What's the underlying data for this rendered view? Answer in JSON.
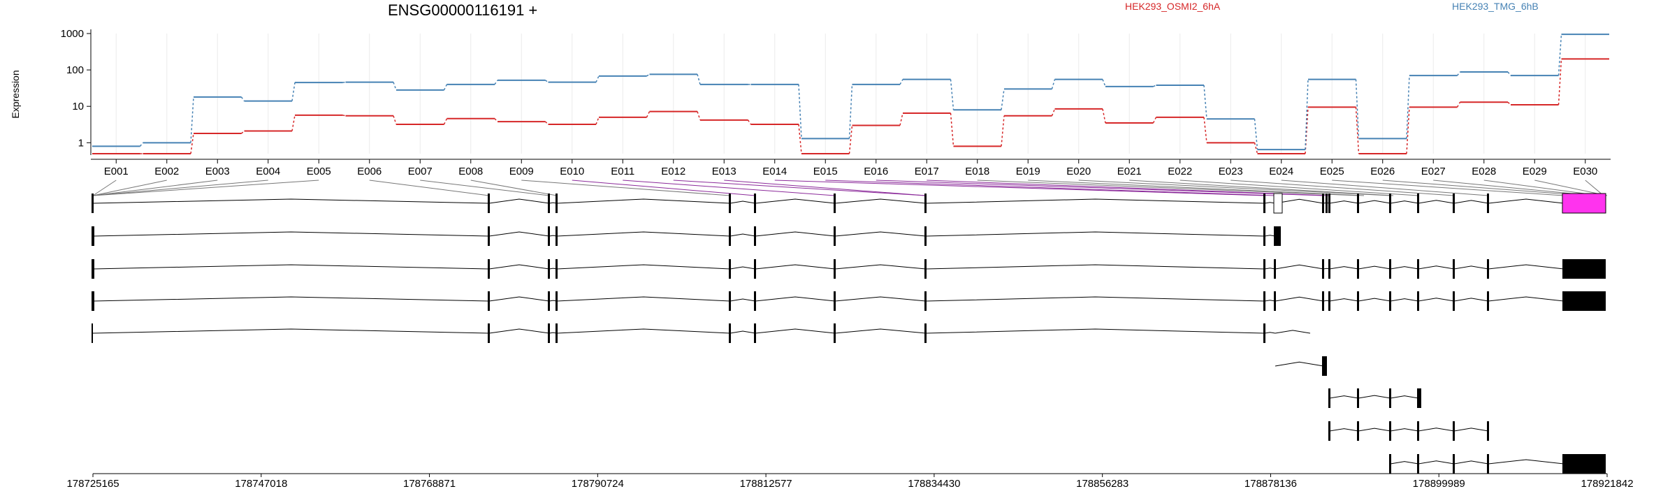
{
  "chart_data": {
    "type": "line",
    "title": "ENSG00000116191 +",
    "ylabel": "Expression",
    "yscale": "log",
    "ylim": [
      0.5,
      1000
    ],
    "yticks": [
      1,
      10,
      100,
      1000
    ],
    "grid": true,
    "legend_placement": "top",
    "categories": [
      "E001",
      "E002",
      "E003",
      "E004",
      "E005",
      "E006",
      "E007",
      "E008",
      "E009",
      "E010",
      "E011",
      "E012",
      "E013",
      "E014",
      "E015",
      "E016",
      "E017",
      "E018",
      "E019",
      "E020",
      "E021",
      "E022",
      "E023",
      "E024",
      "E025",
      "E026",
      "E027",
      "E028",
      "E029",
      "E030"
    ],
    "series": [
      {
        "name": "HEK293_OSMI2_6hA",
        "color": "#d62728",
        "values": [
          0.5,
          0.5,
          1.8,
          2.1,
          5.7,
          5.5,
          3.2,
          4.6,
          3.8,
          3.2,
          5.0,
          7.2,
          4.2,
          3.2,
          0.5,
          3.0,
          6.5,
          0.8,
          5.5,
          8.5,
          3.5,
          5.0,
          1.0,
          0.5,
          9.5,
          0.5,
          9.5,
          13,
          11,
          200
        ]
      },
      {
        "name": "HEK293_TMG_6hB",
        "color": "#4682b4",
        "values": [
          0.8,
          1.0,
          18,
          14,
          45,
          46,
          28,
          40,
          52,
          46,
          68,
          76,
          40,
          40,
          1.3,
          40,
          55,
          8.0,
          30,
          55,
          35,
          38,
          4.5,
          0.65,
          55,
          1.3,
          70,
          88,
          70,
          950
        ]
      }
    ]
  },
  "gene_track": {
    "transcripts": [
      {
        "exons": [
          [
            178725165,
            178725600
          ],
          [
            178811500,
            178811800
          ],
          [
            178824500,
            178824800
          ],
          [
            178875500,
            178875800
          ]
        ],
        "cds": []
      },
      {
        "exons": [
          [
            178725165,
            178725400
          ],
          [
            178811500,
            178811700
          ],
          [
            178824500,
            178824700
          ],
          [
            178875500,
            178875700
          ],
          [
            178887300,
            178887500
          ],
          [
            178888200,
            178888400
          ]
        ],
        "cds": []
      }
    ],
    "genomic_ticks": [
      "178725165",
      "178747018",
      "178768871",
      "178790724",
      "178812577",
      "178834430",
      "178856283",
      "178878136",
      "178899989",
      "178921842"
    ]
  }
}
